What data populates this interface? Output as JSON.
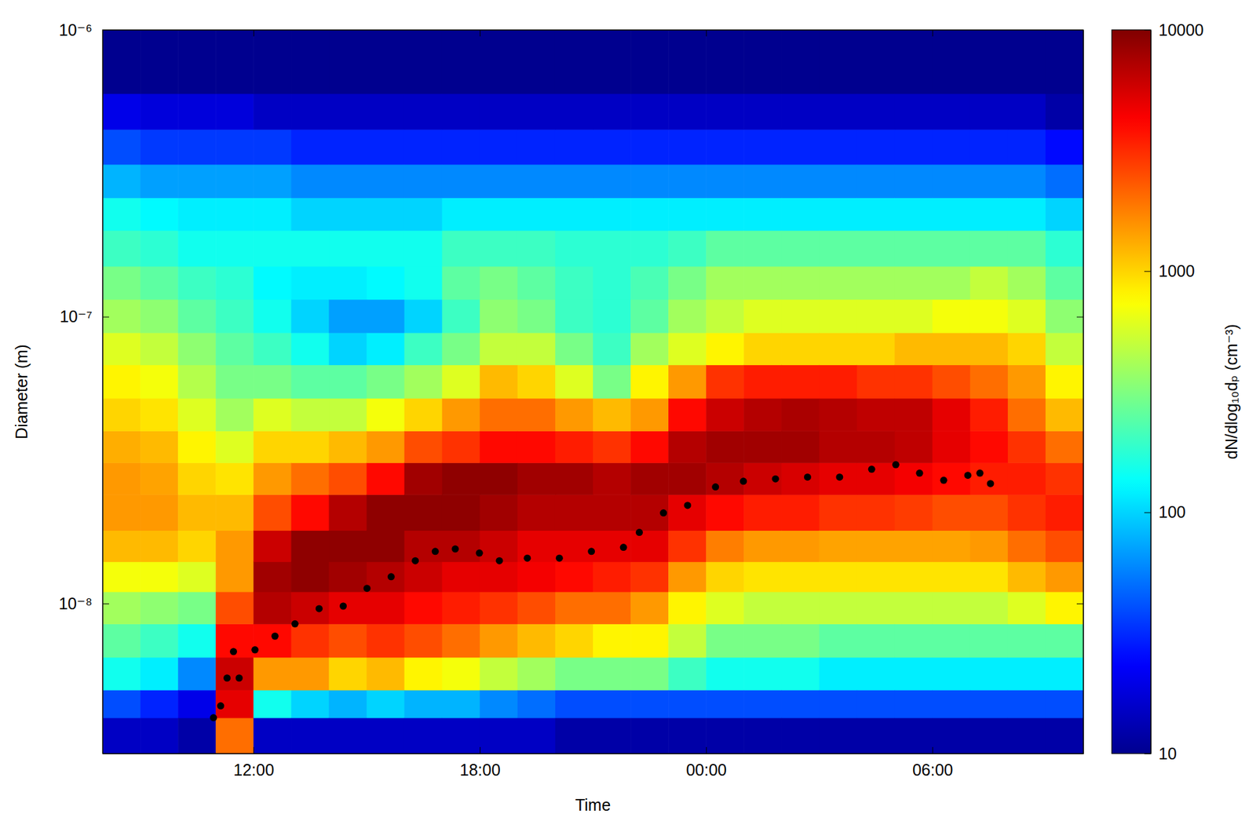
{
  "chart_data": {
    "type": "heatmap",
    "x_label": "Time",
    "y_label": "Diameter (m)",
    "xlim": [
      8,
      34
    ],
    "xticks": [
      {
        "value": 12,
        "label": "12:00"
      },
      {
        "value": 18,
        "label": "18:00"
      },
      {
        "value": 24,
        "label": "00:00"
      },
      {
        "value": 30,
        "label": "06:00"
      }
    ],
    "ylim": [
      3e-09,
      1e-06
    ],
    "yticks": [
      {
        "value": 1e-08,
        "label": "10⁻⁸"
      },
      {
        "value": 1e-07,
        "label": "10⁻⁷"
      },
      {
        "value": 1e-06,
        "label": "10⁻⁶"
      }
    ],
    "log": "y",
    "x_bins": [
      8,
      9,
      10,
      11,
      12,
      13,
      14,
      15,
      16,
      17,
      18,
      19,
      20,
      21,
      22,
      23,
      24,
      25,
      26,
      27,
      28,
      29,
      30,
      31,
      32,
      33,
      34
    ],
    "y_bins": [
      3e-09,
      4e-09,
      5e-09,
      6.5e-09,
      8.5e-09,
      1.1e-08,
      1.4e-08,
      1.8e-08,
      2.4e-08,
      3.1e-08,
      4e-08,
      5.2e-08,
      6.8e-08,
      8.8e-08,
      1.15e-07,
      1.5e-07,
      2e-07,
      2.6e-07,
      3.4e-07,
      4.5e-07,
      6e-07,
      1e-06
    ],
    "cells": [
      [
        15,
        40,
        150,
        250,
        400,
        700,
        1200,
        1500,
        1500,
        1300,
        1000,
        800,
        600,
        400,
        300,
        200,
        150,
        80,
        40,
        20,
        10
      ],
      [
        15,
        30,
        120,
        200,
        350,
        700,
        1200,
        1500,
        1400,
        1200,
        900,
        700,
        500,
        350,
        250,
        180,
        130,
        70,
        35,
        18,
        10
      ],
      [
        12,
        20,
        60,
        150,
        300,
        600,
        1000,
        1200,
        1000,
        800,
        600,
        450,
        350,
        250,
        200,
        150,
        120,
        70,
        35,
        18,
        10
      ],
      [
        2000,
        5000,
        6000,
        4000,
        2500,
        1500,
        1500,
        1200,
        900,
        600,
        400,
        300,
        250,
        200,
        180,
        150,
        120,
        70,
        35,
        18,
        10
      ],
      [
        15,
        150,
        1500,
        4000,
        7000,
        8000,
        6000,
        2500,
        1500,
        1000,
        600,
        300,
        200,
        150,
        130,
        150,
        120,
        70,
        35,
        15,
        10
      ],
      [
        15,
        100,
        1500,
        3000,
        6000,
        9000,
        9000,
        4000,
        2000,
        1000,
        500,
        250,
        150,
        100,
        120,
        150,
        100,
        60,
        30,
        15,
        10
      ],
      [
        15,
        80,
        1000,
        2500,
        5000,
        8000,
        9000,
        7000,
        2500,
        1200,
        500,
        250,
        100,
        70,
        120,
        150,
        100,
        60,
        30,
        15,
        10
      ],
      [
        15,
        100,
        1200,
        3000,
        5000,
        7000,
        9000,
        9000,
        4000,
        1500,
        700,
        300,
        120,
        70,
        130,
        150,
        100,
        60,
        30,
        15,
        10
      ],
      [
        15,
        80,
        800,
        2500,
        4000,
        6000,
        7000,
        9000,
        8000,
        2500,
        1000,
        400,
        200,
        100,
        150,
        150,
        100,
        60,
        30,
        15,
        10
      ],
      [
        15,
        80,
        700,
        2000,
        3500,
        5000,
        7000,
        9000,
        9000,
        3000,
        1500,
        600,
        300,
        200,
        250,
        200,
        120,
        60,
        30,
        15,
        10
      ],
      [
        15,
        60,
        500,
        1500,
        3000,
        5000,
        6000,
        8000,
        9000,
        4000,
        2000,
        1200,
        500,
        350,
        300,
        200,
        120,
        60,
        30,
        15,
        10
      ],
      [
        15,
        50,
        400,
        1200,
        2500,
        4500,
        5000,
        7000,
        8000,
        4000,
        2000,
        1000,
        500,
        300,
        250,
        200,
        120,
        60,
        30,
        15,
        10
      ],
      [
        12,
        40,
        300,
        1000,
        2000,
        4000,
        5000,
        7000,
        8000,
        3500,
        1500,
        600,
        300,
        200,
        200,
        180,
        120,
        60,
        30,
        15,
        10
      ],
      [
        12,
        40,
        300,
        800,
        2000,
        3500,
        5000,
        7000,
        7000,
        3000,
        1200,
        300,
        200,
        180,
        180,
        180,
        120,
        60,
        30,
        15,
        10
      ],
      [
        12,
        40,
        300,
        800,
        1500,
        3000,
        5000,
        7000,
        8000,
        4000,
        1500,
        800,
        400,
        250,
        220,
        180,
        120,
        60,
        30,
        15,
        10
      ],
      [
        12,
        40,
        200,
        500,
        800,
        1500,
        3000,
        5000,
        8000,
        7000,
        4000,
        1500,
        600,
        400,
        300,
        200,
        120,
        60,
        30,
        15,
        10
      ],
      [
        12,
        40,
        150,
        300,
        600,
        1000,
        1800,
        4000,
        7000,
        8000,
        6000,
        3000,
        800,
        500,
        400,
        250,
        120,
        60,
        30,
        15,
        10
      ],
      [
        12,
        40,
        150,
        300,
        500,
        900,
        1500,
        3500,
        6000,
        8000,
        7000,
        3500,
        1000,
        600,
        400,
        250,
        120,
        60,
        30,
        15,
        10
      ],
      [
        12,
        40,
        150,
        300,
        500,
        900,
        1500,
        3500,
        5500,
        8000,
        7500,
        3500,
        1000,
        600,
        400,
        250,
        120,
        60,
        30,
        15,
        10
      ],
      [
        12,
        40,
        120,
        250,
        500,
        900,
        1400,
        3000,
        5000,
        7000,
        7000,
        3500,
        1000,
        600,
        400,
        250,
        120,
        60,
        30,
        15,
        10
      ],
      [
        12,
        40,
        120,
        250,
        500,
        900,
        1400,
        3000,
        5000,
        7000,
        6500,
        3000,
        1000,
        600,
        400,
        250,
        120,
        60,
        30,
        15,
        10
      ],
      [
        12,
        40,
        120,
        250,
        500,
        900,
        1400,
        2800,
        4500,
        6500,
        6500,
        3000,
        1200,
        600,
        400,
        250,
        120,
        60,
        30,
        15,
        10
      ],
      [
        12,
        40,
        120,
        250,
        500,
        900,
        1400,
        2500,
        4000,
        5000,
        5000,
        2500,
        1200,
        700,
        400,
        250,
        120,
        60,
        30,
        15,
        10
      ],
      [
        12,
        40,
        120,
        250,
        500,
        900,
        1500,
        2500,
        3500,
        4000,
        3500,
        2000,
        1200,
        700,
        500,
        250,
        120,
        60,
        30,
        15,
        10
      ],
      [
        12,
        40,
        120,
        250,
        600,
        1200,
        2000,
        3000,
        3500,
        3000,
        2000,
        1500,
        1000,
        600,
        400,
        250,
        120,
        60,
        30,
        15,
        10
      ],
      [
        12,
        40,
        120,
        250,
        800,
        1500,
        2500,
        3500,
        3000,
        2000,
        1200,
        800,
        500,
        350,
        250,
        180,
        100,
        50,
        25,
        12,
        10
      ]
    ],
    "colorbar": {
      "label": "dN/dlog₁₀dₚ (cm⁻³)",
      "range": [
        10,
        10000
      ],
      "ticks": [
        10,
        100,
        1000,
        10000
      ],
      "log": true
    },
    "series": [
      {
        "type": "scatter",
        "color": "#000000",
        "marker": "circle",
        "x": [
          10.94,
          11.13,
          11.3,
          11.47,
          11.62,
          12.04,
          12.57,
          13.1,
          13.74,
          14.38,
          15.01,
          15.65,
          16.29,
          16.82,
          17.35,
          17.99,
          18.52,
          19.26,
          20.11,
          20.96,
          21.81,
          22.23,
          22.87,
          23.51,
          24.25,
          24.99,
          25.84,
          26.69,
          27.54,
          28.39,
          29.03,
          29.66,
          30.3,
          30.94,
          31.26,
          31.54
        ],
        "values": [
          4e-09,
          4.4e-09,
          5.5e-09,
          6.8e-09,
          5.5e-09,
          6.9e-09,
          7.7e-09,
          8.5e-09,
          9.6e-09,
          9.8e-09,
          1.13e-08,
          1.24e-08,
          1.41e-08,
          1.52e-08,
          1.55e-08,
          1.5e-08,
          1.41e-08,
          1.44e-08,
          1.44e-08,
          1.52e-08,
          1.57e-08,
          1.77e-08,
          2.07e-08,
          2.2e-08,
          2.55e-08,
          2.67e-08,
          2.72e-08,
          2.76e-08,
          2.76e-08,
          2.94e-08,
          3.05e-08,
          2.85e-08,
          2.69e-08,
          2.8e-08,
          2.85e-08,
          2.62e-08
        ]
      }
    ]
  }
}
